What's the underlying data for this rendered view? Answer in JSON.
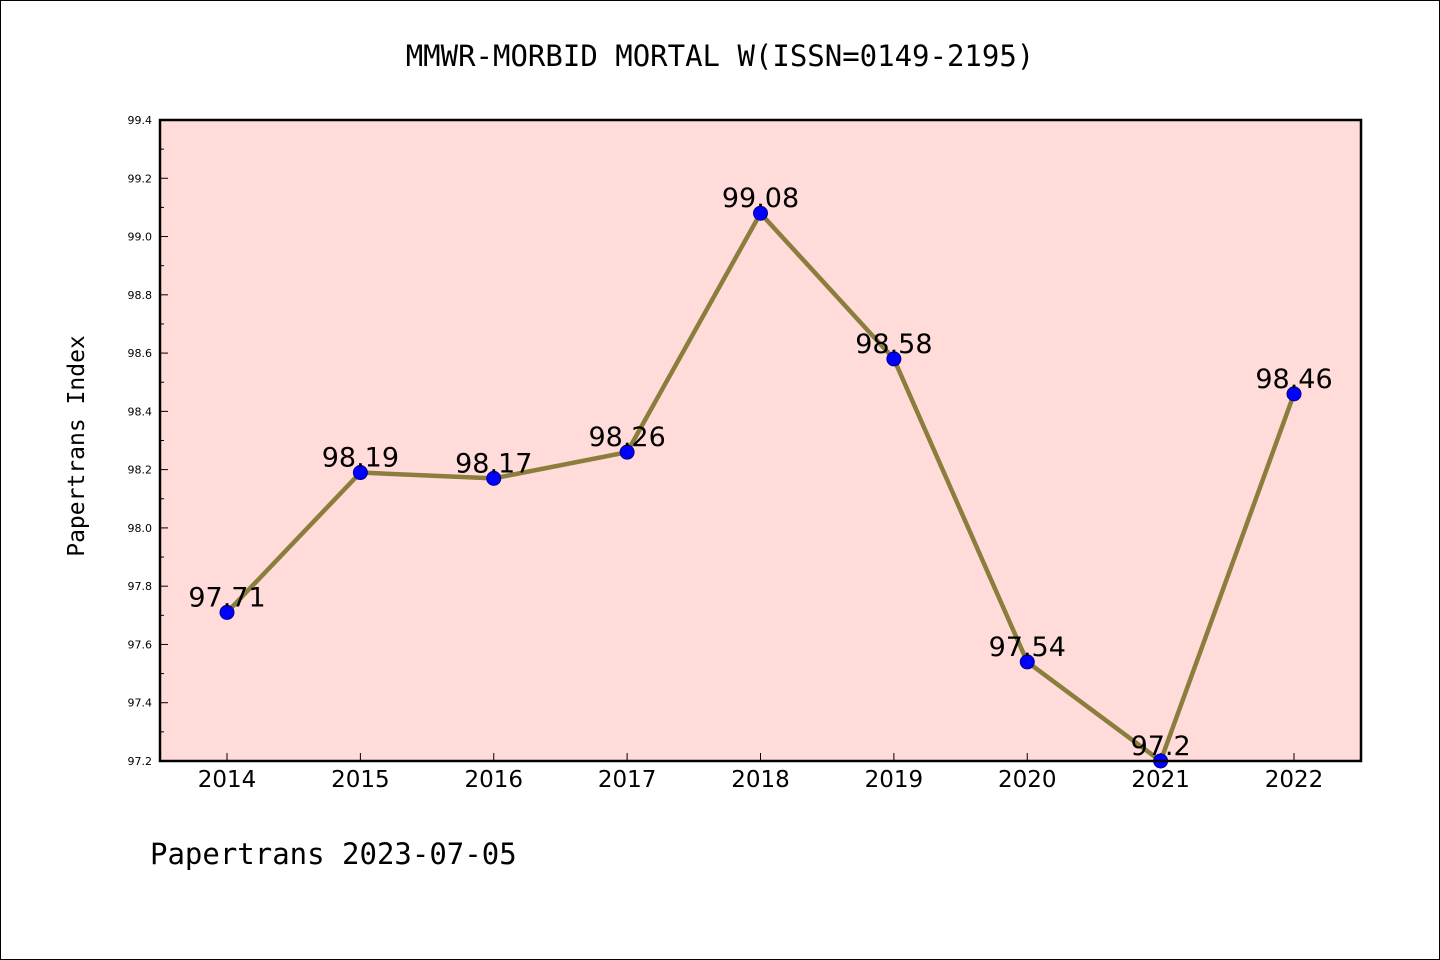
{
  "chart_data": {
    "type": "line",
    "title": "MMWR-MORBID MORTAL W(ISSN=0149-2195)",
    "xlabel": "",
    "ylabel": "Papertrans Index",
    "categories": [
      "2014",
      "2015",
      "2016",
      "2017",
      "2018",
      "2019",
      "2020",
      "2021",
      "2022"
    ],
    "values": [
      97.71,
      98.19,
      98.17,
      98.26,
      99.08,
      98.58,
      97.54,
      97.2,
      98.46
    ],
    "data_labels": [
      "97.71",
      "98.19",
      "98.17",
      "98.26",
      "99.08",
      "98.58",
      "97.54",
      "97.2",
      "98.46"
    ],
    "ylim": [
      97.2,
      99.4
    ],
    "y_ticks": [
      "97.2",
      "97.4",
      "97.6",
      "97.8",
      "98.0",
      "98.2",
      "98.4",
      "98.6",
      "98.8",
      "99.0",
      "99.2",
      "99.4"
    ],
    "grid": false,
    "legend": "none"
  },
  "footer": "Papertrans 2023-07-05",
  "colors": {
    "plot_background": "#FFDCDA",
    "line": "#8B7D3C",
    "marker": "#0000FF",
    "marker_edge": "#00008B",
    "axis": "#000000"
  }
}
